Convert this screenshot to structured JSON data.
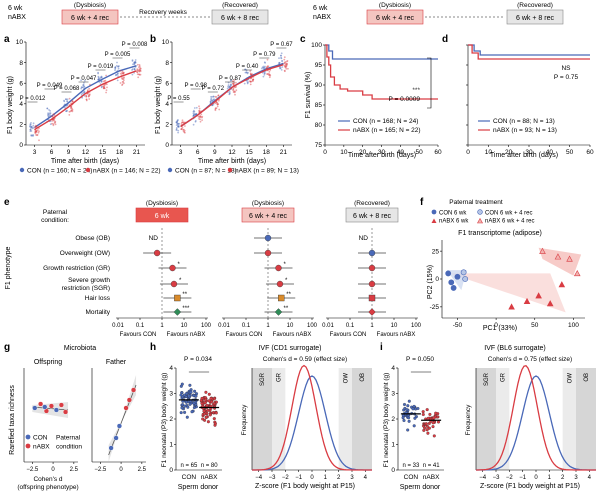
{
  "colors": {
    "con": "#4a69b8",
    "nabx": "#d93c43",
    "dysbiosis_box": "#f4c5c0",
    "dysbiosis_box_strong": "#e8564f",
    "recovered_box": "#e6e6e6",
    "green": "#2e8b57",
    "orange": "#d98b2b",
    "grid_band": "#dedede"
  },
  "panel_letters": [
    "a",
    "b",
    "c",
    "d",
    "e",
    "f",
    "g",
    "h",
    "i"
  ],
  "timelines": {
    "left": {
      "start_label_1": "6 wk",
      "start_label_2": "nABX",
      "dysbiosis": "(Dysbiosis)",
      "box1": "6 wk + 4 rec",
      "middle": "Recovery weeks",
      "recovered": "(Recovered)",
      "box2": "6 wk + 8 rec"
    },
    "right": {
      "start_label_1": "6 wk",
      "start_label_2": "nABX",
      "dysbiosis": "(Dysbiosis)",
      "box1": "6 wk + 4 rec",
      "recovered": "(Recovered)",
      "box2": "6 wk + 8 rec"
    }
  },
  "chart_data": [
    {
      "panel": "a",
      "type": "scatter",
      "ylabel": "F1 body weight (g)",
      "xlabel": "Time after birth (days)",
      "xticks": [
        3,
        6,
        9,
        12,
        15,
        18,
        21
      ],
      "yticks": [
        0,
        2,
        4,
        6,
        8,
        10
      ],
      "ylim": [
        0,
        10
      ],
      "p_values": [
        "P = 0.012",
        "P = 0.049",
        "P = 0.068",
        "P = 0.047",
        "P = 0.019",
        "P = 0.005",
        "P = 0.008"
      ],
      "legend": [
        "CON (n = 160; N = 24)",
        "nABX (n = 146; N = 22)"
      ],
      "series": [
        {
          "name": "CON",
          "x": [
            3,
            6,
            9,
            12,
            15,
            18,
            21
          ],
          "values": [
            1.7,
            2.8,
            4.1,
            5.5,
            6.4,
            7.2,
            7.7
          ]
        },
        {
          "name": "nABX",
          "x": [
            3,
            6,
            9,
            12,
            15,
            18,
            21
          ],
          "values": [
            1.5,
            2.5,
            3.7,
            5.0,
            5.9,
            6.6,
            7.2
          ]
        }
      ]
    },
    {
      "panel": "b",
      "type": "scatter",
      "ylabel": "F1 body weight (g)",
      "xlabel": "Time after birth (days)",
      "xticks": [
        3,
        6,
        9,
        12,
        15,
        18,
        21
      ],
      "yticks": [
        0,
        2,
        4,
        6,
        8,
        10
      ],
      "ylim": [
        0,
        10
      ],
      "p_values": [
        "P = 0.55",
        "P = 0.98",
        "P = 0.72",
        "P = 0.87",
        "P = 0.40",
        "P = 0.79",
        "P = 0.67"
      ],
      "legend": [
        "CON (n = 87; N = 13)",
        "nABX (n = 89; N = 13)"
      ],
      "series": [
        {
          "name": "CON",
          "x": [
            3,
            6,
            9,
            12,
            15,
            18,
            21
          ],
          "values": [
            1.8,
            2.9,
            4.3,
            5.6,
            6.6,
            7.4,
            7.9
          ]
        },
        {
          "name": "nABX",
          "x": [
            3,
            6,
            9,
            12,
            15,
            18,
            21
          ],
          "values": [
            1.8,
            2.9,
            4.2,
            5.6,
            6.5,
            7.3,
            7.8
          ]
        }
      ]
    },
    {
      "panel": "c",
      "type": "line",
      "ylabel": "F1 survival (%)",
      "xlabel": "Time after birth (days)",
      "xticks": [
        0,
        10,
        20,
        30,
        40,
        50,
        60
      ],
      "yticks": [
        75,
        80,
        85,
        90,
        95,
        100
      ],
      "ylim": [
        75,
        100
      ],
      "annotation": "P = 0.0009",
      "stars": "***",
      "legend": [
        "CON (n = 168; N = 24)",
        "nABX (n = 165; N = 22)"
      ],
      "series": [
        {
          "name": "CON",
          "x": [
            0,
            2,
            4,
            60
          ],
          "values": [
            100,
            98.5,
            96.5,
            96.5
          ]
        },
        {
          "name": "nABX",
          "x": [
            0,
            1,
            2,
            3,
            5,
            8,
            12,
            20,
            25,
            60
          ],
          "values": [
            100,
            97,
            95,
            92,
            90,
            89,
            88.5,
            87.5,
            86.5,
            86.5
          ]
        }
      ]
    },
    {
      "panel": "d",
      "type": "line",
      "xlabel": "Time after birth (days)",
      "xticks": [
        0,
        10,
        20,
        30,
        40,
        50,
        60
      ],
      "yticks": [
        75,
        80,
        85,
        90,
        95,
        100
      ],
      "ylim": [
        75,
        100
      ],
      "annotation_1": "NS",
      "annotation_2": "P = 0.75",
      "legend": [
        "CON (n = 88; N = 13)",
        "nABX (n = 93; N = 13)"
      ],
      "series": [
        {
          "name": "CON",
          "x": [
            0,
            3,
            6,
            60
          ],
          "values": [
            100,
            98.5,
            97.5,
            97.5
          ]
        },
        {
          "name": "nABX",
          "x": [
            0,
            2,
            5,
            60
          ],
          "values": [
            100,
            98,
            96.5,
            96.5
          ]
        }
      ]
    },
    {
      "panel": "e",
      "type": "scatter",
      "ylabel": "F1 phenotype",
      "paternal_label_1": "Paternal",
      "paternal_label_2": "condition:",
      "categories": [
        "Obese (OB)",
        "Overweight (OW)",
        "Growth restriction (GR)",
        "Severe growth restriction (SGR)",
        "Hair loss",
        "Mortality"
      ],
      "xticks": [
        "0.01",
        "0.1",
        "1",
        "10",
        "100"
      ],
      "x_left": "Favours CON",
      "x_right": "Favours nABX",
      "subpanels": [
        {
          "title_top": "(Dysbiosis)",
          "box": "6 wk",
          "values": [
            null,
            0.6,
            3.0,
            3.5,
            5.0,
            5.0
          ],
          "stars": [
            "ND",
            "",
            "*",
            "*",
            "**",
            "***"
          ]
        },
        {
          "title_top": "(Dysbiosis)",
          "box": "6 wk + 4 rec",
          "values": [
            1.0,
            1.0,
            3.0,
            3.5,
            4.0,
            3.0
          ],
          "stars": [
            "",
            "",
            "*",
            "*",
            "**",
            "**"
          ]
        },
        {
          "title_top": "(Recovered)",
          "box": "6 wk + 8 rec",
          "values": [
            null,
            1.0,
            1.0,
            1.0,
            1.0,
            1.0
          ],
          "stars": [
            "ND",
            "",
            "",
            "",
            "",
            ""
          ]
        }
      ]
    },
    {
      "panel": "f",
      "type": "scatter",
      "legend_title": "Paternal treatment",
      "legend": [
        "CON 6 wk",
        "CON 6 wk + 4 rec",
        "nABX 6 wk",
        "nABX 6 wk + 4 rec"
      ],
      "title": "F1 transcriptome (adipose)",
      "xlabel": "PC1 (33%)",
      "ylabel": "PC2 (15%)",
      "xticks": [
        -50,
        0,
        50,
        100
      ],
      "yticks": [
        -25,
        0,
        25
      ],
      "series": [
        {
          "name": "CON 6 wk",
          "x": [
            -62,
            -58,
            -55,
            -50
          ],
          "values": [
            5,
            -3,
            -8,
            2
          ]
        },
        {
          "name": "CON 6 wk + 4 rec",
          "x": [
            -42,
            -40
          ],
          "values": [
            6,
            0
          ]
        },
        {
          "name": "nABX 6 wk",
          "x": [
            20,
            40,
            55,
            70,
            85
          ],
          "values": [
            -25,
            -20,
            -15,
            -22,
            -5
          ]
        },
        {
          "name": "nABX 6 wk + 4 rec",
          "x": [
            60,
            80,
            95,
            105
          ],
          "values": [
            25,
            20,
            18,
            5
          ]
        }
      ]
    },
    {
      "panel": "g",
      "type": "scatter",
      "title": "Microbiota",
      "subtitles": [
        "Offspring",
        "Father"
      ],
      "ylabel": "Rarefied taxa richness",
      "xlabel_1": "Cohen's d",
      "xlabel_2": "(offspring phenotype)",
      "xticks": [
        "−2.5",
        "0",
        "2.5"
      ],
      "legend": [
        "CON",
        "nABX"
      ],
      "legend_note_1": "Paternal",
      "legend_note_2": "condition"
    },
    {
      "panel": "h",
      "type": "scatter",
      "title": "IVF (CD1 surrogate)",
      "effect": "Cohen's d = 0.59 (effect size)",
      "p_value": "P = 0.034",
      "ylabel": "F1 neonatal (P3) body weight (g)",
      "yticks": [
        0,
        1,
        2,
        3,
        4
      ],
      "categories": [
        "CON",
        "nABX"
      ],
      "n_labels": [
        "n = 65",
        "n = 80"
      ],
      "xlabel": "Sperm donor",
      "dist_xlabel": "Z-score (F1 body weight at P15)",
      "dist_ylabel": "Frequency",
      "dist_xticks": [
        "−4",
        "−3",
        "−2",
        "−1",
        "0",
        "1",
        "2",
        "3",
        "4"
      ],
      "bands": [
        "SGR",
        "GR",
        "OW",
        "OB"
      ],
      "series": [
        {
          "name": "CON",
          "values": [
            2.75
          ]
        },
        {
          "name": "nABX",
          "values": [
            2.45
          ]
        }
      ]
    },
    {
      "panel": "i",
      "type": "scatter",
      "title": "IVF (BL6 surrogate)",
      "effect": "Cohen's d = 0.75 (effect size)",
      "p_value": "P = 0.050",
      "ylabel": "F1 neonatal (P3) body weight (g)",
      "yticks": [
        0,
        1,
        2,
        3,
        4
      ],
      "categories": [
        "CON",
        "nABX"
      ],
      "n_labels": [
        "n = 33",
        "n = 41"
      ],
      "xlabel": "Sperm donor",
      "dist_xlabel": "Z-score (F1 body weight at P15)",
      "dist_ylabel": "Frequency",
      "dist_xticks": [
        "−4",
        "−3",
        "−2",
        "−1",
        "0",
        "1",
        "2",
        "3",
        "4"
      ],
      "bands": [
        "SGR",
        "GR",
        "OW",
        "OB"
      ],
      "series": [
        {
          "name": "CON",
          "values": [
            2.2
          ]
        },
        {
          "name": "nABX",
          "values": [
            1.95
          ]
        }
      ]
    }
  ]
}
